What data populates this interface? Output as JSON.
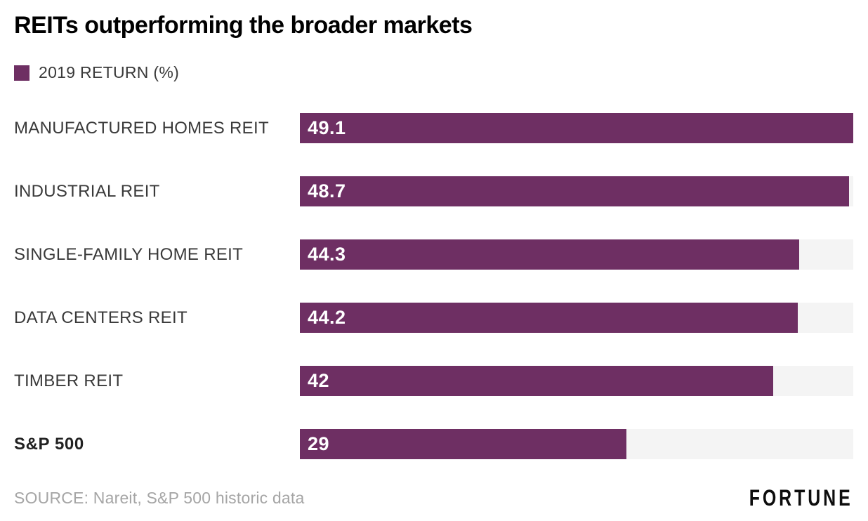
{
  "title": "REITs outperforming the broader markets",
  "legend": {
    "label": "2019 RETURN (%)"
  },
  "colors": {
    "bar": "#6e2f63",
    "track": "#f4f4f4"
  },
  "chart_data": {
    "type": "bar",
    "orientation": "horizontal",
    "title": "REITs outperforming the broader markets",
    "legend_entries": [
      "2019 RETURN (%)"
    ],
    "categories": [
      "MANUFACTURED HOMES REIT",
      "INDUSTRIAL REIT",
      "SINGLE-FAMILY HOME REIT",
      "DATA CENTERS REIT",
      "TIMBER REIT",
      "S&P 500"
    ],
    "values": [
      49.1,
      48.7,
      44.3,
      44.2,
      42,
      29
    ],
    "value_labels": [
      "49.1",
      "48.7",
      "44.3",
      "44.2",
      "42",
      "29"
    ],
    "xlabel": "",
    "ylabel": "",
    "xlim": [
      0,
      49.1
    ],
    "grid": false,
    "legend_position": "top-left",
    "value_label_position": "inside-start",
    "emphasized_category": "S&P 500",
    "bar_color": "#6e2f63",
    "track_color": "#f4f4f4"
  },
  "footer": {
    "source": "SOURCE: Nareit, S&P 500 historic data",
    "logo": "FORTUNE"
  }
}
